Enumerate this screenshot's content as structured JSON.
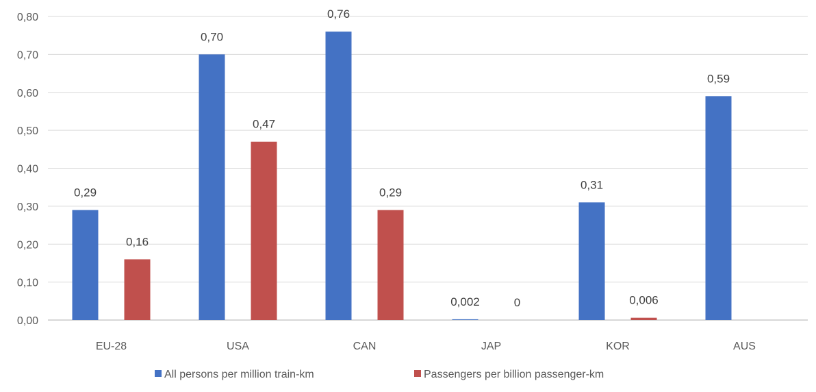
{
  "chart_data": {
    "type": "bar",
    "categories": [
      "EU-28",
      "USA",
      "CAN",
      "JAP",
      "KOR",
      "AUS"
    ],
    "series": [
      {
        "name": "All persons per million train-km",
        "color": "#4472c4",
        "values": [
          0.29,
          0.7,
          0.76,
          0.002,
          0.31,
          0.59
        ],
        "labels": [
          "0,29",
          "0,70",
          "0,76",
          "0,002",
          "0,31",
          "0,59"
        ]
      },
      {
        "name": "Passengers per billion passenger-km",
        "color": "#c0504d",
        "values": [
          0.16,
          0.47,
          0.29,
          0,
          0.006,
          null
        ],
        "labels": [
          "0,16",
          "0,47",
          "0,29",
          "0",
          "0,006",
          null
        ]
      }
    ],
    "yticks": [
      "0,00",
      "0,10",
      "0,20",
      "0,30",
      "0,40",
      "0,50",
      "0,60",
      "0,70",
      "0,80"
    ],
    "ylim": [
      0,
      0.8
    ],
    "grid": true,
    "legend_position": "bottom"
  }
}
